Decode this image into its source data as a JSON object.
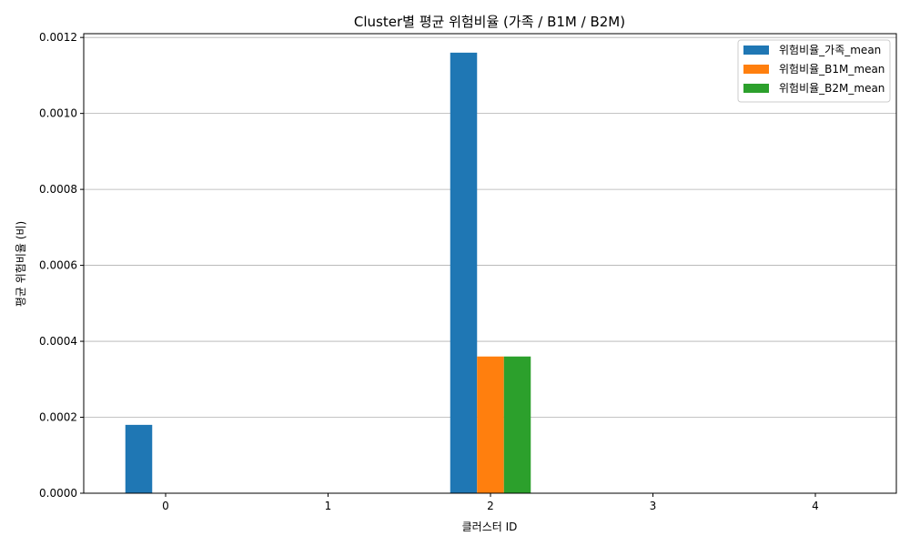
{
  "chart_data": {
    "type": "bar",
    "title": "Cluster별 평균 위험비율 (가족 / B1M / B2M)",
    "xlabel": "클러스터 ID",
    "ylabel": "평균 위험비율 (비)",
    "categories": [
      "0",
      "1",
      "2",
      "3",
      "4"
    ],
    "series": [
      {
        "name": "위험비율_가족_mean",
        "color": "#1f77b4",
        "values": [
          0.00018,
          0,
          0.00116,
          0,
          0
        ]
      },
      {
        "name": "위험비율_B1M_mean",
        "color": "#ff7f0e",
        "values": [
          0,
          0,
          0.00036,
          0,
          0
        ]
      },
      {
        "name": "위험비율_B2M_mean",
        "color": "#2ca02c",
        "values": [
          0,
          0,
          0.00036,
          0,
          0
        ]
      }
    ],
    "ylim": [
      0,
      0.00121
    ],
    "yticks": [
      "0.0000",
      "0.0002",
      "0.0004",
      "0.0006",
      "0.0008",
      "0.0010",
      "0.0012"
    ],
    "ytick_values": [
      0,
      0.0002,
      0.0004,
      0.0006,
      0.0008,
      0.001,
      0.0012
    ],
    "grid": "y-axis",
    "legend_position": "top-right"
  }
}
